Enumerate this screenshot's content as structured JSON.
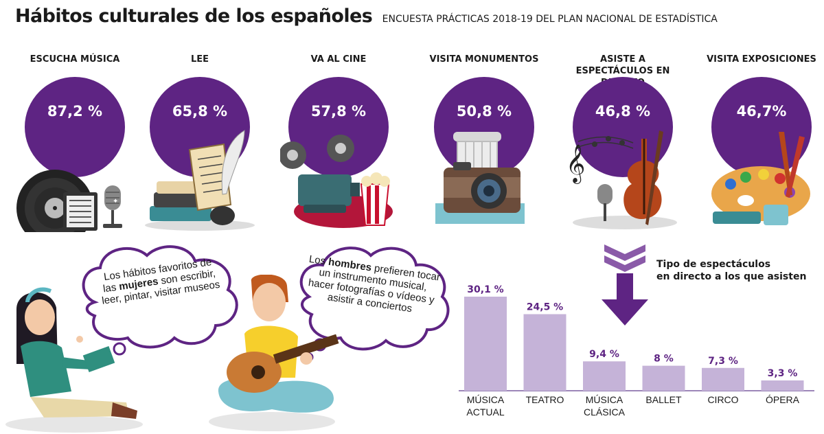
{
  "header": {
    "title": "Hábitos culturales de los españoles",
    "subtitle": "ENCUESTA PRÁCTICAS 2018-19 DEL PLAN NACIONAL DE ESTADÍSTICA"
  },
  "habits": [
    {
      "label": "ESCUCHA MÚSICA",
      "value": "87,2 %",
      "icon": "vinyl-record-icon"
    },
    {
      "label": "LEE",
      "value": "65,8 %",
      "icon": "books-quill-icon"
    },
    {
      "label": "VA AL CINE",
      "value": "57,8 %",
      "icon": "film-projector-icon"
    },
    {
      "label": "VISITA MONUMENTOS",
      "value": "50,8 %",
      "icon": "camera-column-icon"
    },
    {
      "label": "ASISTE A ESPECTÁCULOS EN DIRECTO",
      "value": "46,8 %",
      "icon": "violin-music-icon"
    },
    {
      "label": "VISITA EXPOSICIONES",
      "value": "46,7%",
      "icon": "paint-palette-icon"
    }
  ],
  "bubbles": {
    "women": {
      "pre": "Los hábitos favoritos de las ",
      "bold": "mujeres",
      "post": " son escribir, leer, pintar, visitar museos"
    },
    "men": {
      "pre": "Los ",
      "bold": "hombres",
      "post": " prefieren tocar un instrumento musical, hacer fotografías o vídeos y asistir a conciertos"
    }
  },
  "colors": {
    "purple": "#5e2483",
    "bar": "#c5b3d8",
    "baseline": "#9c86b8"
  },
  "chart_data": {
    "type": "bar",
    "title": "Tipo de espectáculos en directo a los que asisten",
    "categories": [
      "MÚSICA ACTUAL",
      "TEATRO",
      "MÚSICA CLÁSICA",
      "BALLET",
      "CIRCO",
      "ÓPERA"
    ],
    "values": [
      30.1,
      24.5,
      9.4,
      8,
      7.3,
      3.3
    ],
    "value_labels": [
      "30,1 %",
      "24,5 %",
      "9,4 %",
      "8 %",
      "7,3 %",
      "3,3 %"
    ],
    "unit": "%",
    "ylim": [
      0,
      30.1
    ],
    "grid": false,
    "legend": "none"
  }
}
